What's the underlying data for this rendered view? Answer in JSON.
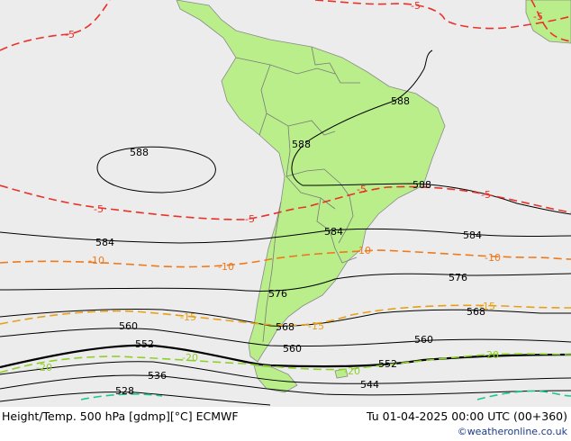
{
  "colors": {
    "ocean": "#ececec",
    "land": "#b9ee8a",
    "border": "#7a7a7a",
    "height": "#000000",
    "t_minus5": "#e8322a",
    "t_minus10": "#ee7a1c",
    "t_minus15": "#e6a018",
    "t_minus20": "#8ed02a",
    "t_minus25": "#1cc890",
    "credit": "#1a3a8c"
  },
  "height_labels": [
    "588",
    "588",
    "588",
    "588",
    "584",
    "584",
    "584",
    "576",
    "576",
    "568",
    "568",
    "560",
    "560",
    "560",
    "552",
    "552",
    "544",
    "536",
    "528"
  ],
  "temperature_labels": [
    "-5",
    "-5",
    "-5",
    "-5",
    "-5",
    "-5",
    "-5",
    "-10",
    "-10",
    "-10",
    "-10",
    "-15",
    "-15",
    "-15",
    "-20",
    "-20",
    "-20",
    "-20"
  ],
  "footer": {
    "title": "Height/Temp. 500 hPa [gdmp][°C] ECMWF",
    "valid_time": "Tu 01-04-2025 00:00 UTC (00+360)",
    "credit": "©weatheronline.co.uk"
  }
}
